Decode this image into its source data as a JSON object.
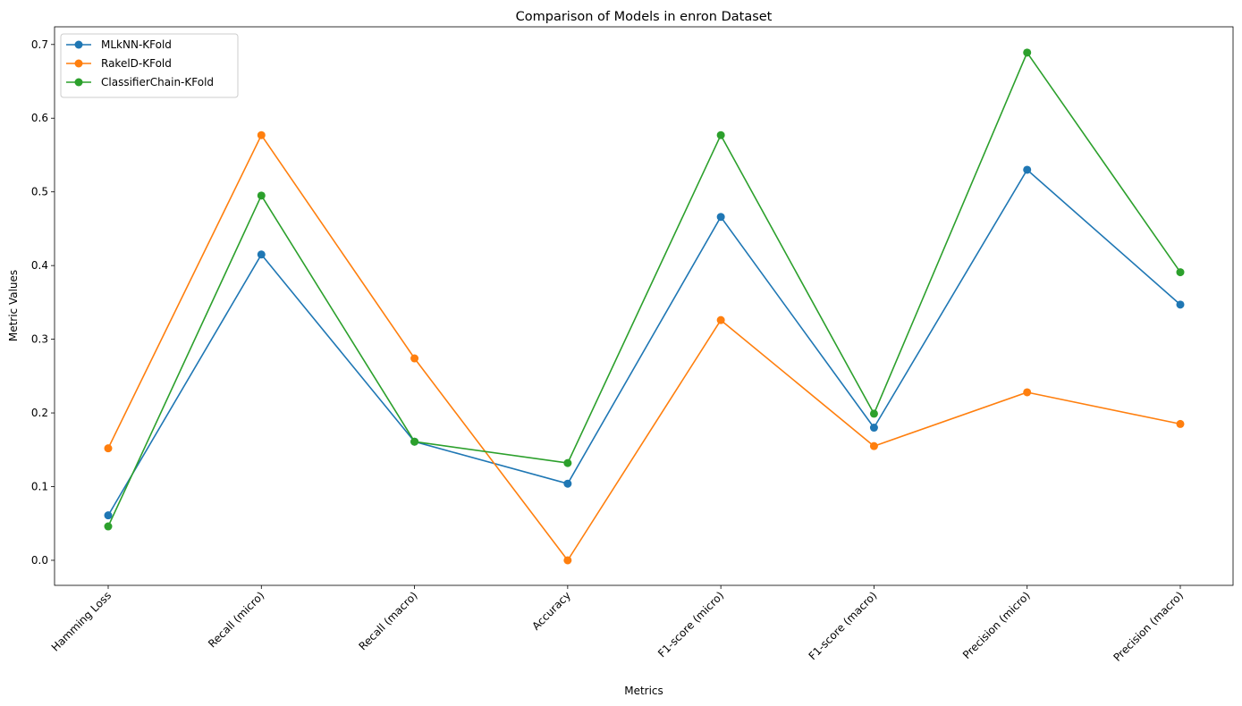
{
  "chart_data": {
    "type": "line",
    "title": "Comparison of Models in enron Dataset",
    "xlabel": "Metrics",
    "ylabel": "Metric Values",
    "categories": [
      "Hamming Loss",
      "Recall (micro)",
      "Recall (macro)",
      "Accuracy",
      "F1-score (micro)",
      "F1-score (macro)",
      "Precision (micro)",
      "Precision (macro)"
    ],
    "yticks": [
      "0.0",
      "0.1",
      "0.2",
      "0.3",
      "0.4",
      "0.5",
      "0.6",
      "0.7"
    ],
    "ylim": [
      -0.034,
      0.724
    ],
    "grid": false,
    "legend_position": "top-left",
    "series": [
      {
        "name": "MLkNN-KFold",
        "color": "#1f77b4",
        "values": [
          0.061,
          0.415,
          0.161,
          0.104,
          0.466,
          0.18,
          0.53,
          0.347
        ]
      },
      {
        "name": "RakelD-KFold",
        "color": "#ff7f0e",
        "values": [
          0.152,
          0.577,
          0.274,
          0.0,
          0.326,
          0.155,
          0.228,
          0.185
        ]
      },
      {
        "name": "ClassifierChain-KFold",
        "color": "#2ca02c",
        "values": [
          0.046,
          0.495,
          0.161,
          0.132,
          0.577,
          0.199,
          0.689,
          0.391
        ]
      }
    ]
  }
}
